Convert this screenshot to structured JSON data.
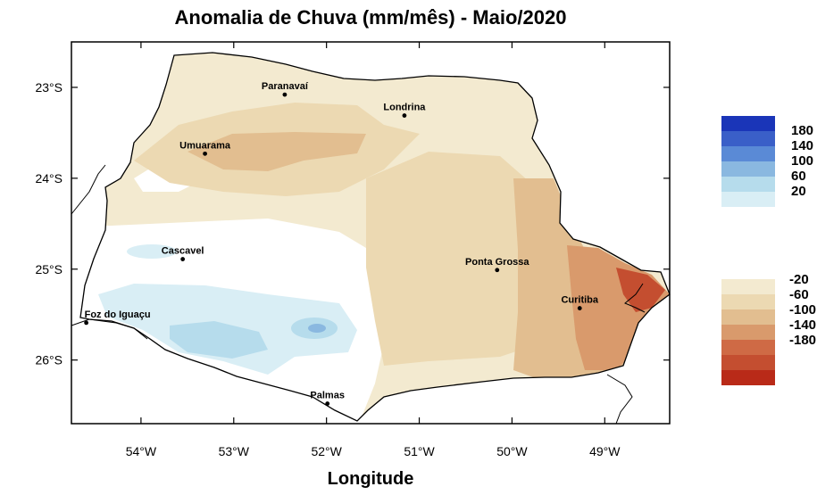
{
  "title": "Anomalia de Chuva (mm/mês) - Maio/2020",
  "x_axis": {
    "label": "Longitude",
    "ticks": [
      {
        "value": -54,
        "label": "54°W"
      },
      {
        "value": -53,
        "label": "53°W"
      },
      {
        "value": -52,
        "label": "52°W"
      },
      {
        "value": -51,
        "label": "51°W"
      },
      {
        "value": -50,
        "label": "50°W"
      },
      {
        "value": -49,
        "label": "49°W"
      }
    ]
  },
  "y_axis": {
    "ticks": [
      {
        "value": -23,
        "label": "23°S"
      },
      {
        "value": -24,
        "label": "24°S"
      },
      {
        "value": -25,
        "label": "25°S"
      },
      {
        "value": -26,
        "label": "26°S"
      }
    ]
  },
  "extent": {
    "lon": [
      -54.75,
      -48.3
    ],
    "lat": [
      -26.7,
      -22.5
    ]
  },
  "cities": [
    {
      "name": "Paranavaí",
      "lon": -52.45,
      "lat": -23.08
    },
    {
      "name": "Londrina",
      "lon": -51.16,
      "lat": -23.31
    },
    {
      "name": "Umuarama",
      "lon": -53.31,
      "lat": -23.73
    },
    {
      "name": "Cascavel",
      "lon": -53.55,
      "lat": -24.89
    },
    {
      "name": "Ponta Grossa",
      "lon": -50.16,
      "lat": -25.01
    },
    {
      "name": "Foz do Iguaçu",
      "lon": -54.59,
      "lat": -25.59
    },
    {
      "name": "Curitiba",
      "lon": -49.27,
      "lat": -25.43
    },
    {
      "name": "Palmas",
      "lon": -51.99,
      "lat": -26.48
    }
  ],
  "legend": {
    "positive": [
      {
        "label": "180",
        "color": "#1a35b8"
      },
      {
        "label": "140",
        "color": "#3a5fc8"
      },
      {
        "label": "100",
        "color": "#5a8ad6"
      },
      {
        "label": "60",
        "color": "#8ab8e0"
      },
      {
        "label": "20",
        "color": "#b6dcec"
      },
      {
        "label": "",
        "color": "#d9eef5"
      }
    ],
    "negative": [
      {
        "label": "-20",
        "color": "#f3ead0"
      },
      {
        "label": "-60",
        "color": "#ecd9b2"
      },
      {
        "label": "-100",
        "color": "#e2be90"
      },
      {
        "label": "-140",
        "color": "#d99a6c"
      },
      {
        "label": "-180",
        "color": "#cf6a45"
      },
      {
        "label": "",
        "color": "#c44e30"
      },
      {
        "label": "",
        "color": "#b92a18"
      }
    ]
  },
  "colors": {
    "land_light": "#f3ead0",
    "land_mid": "#ecd9b2",
    "land_dark": "#e2be90",
    "brown": "#d99a6c",
    "red": "#c44e30",
    "blue_light": "#d9eef5",
    "blue_mid": "#b6dcec",
    "blue_dark": "#8ab8e0"
  }
}
